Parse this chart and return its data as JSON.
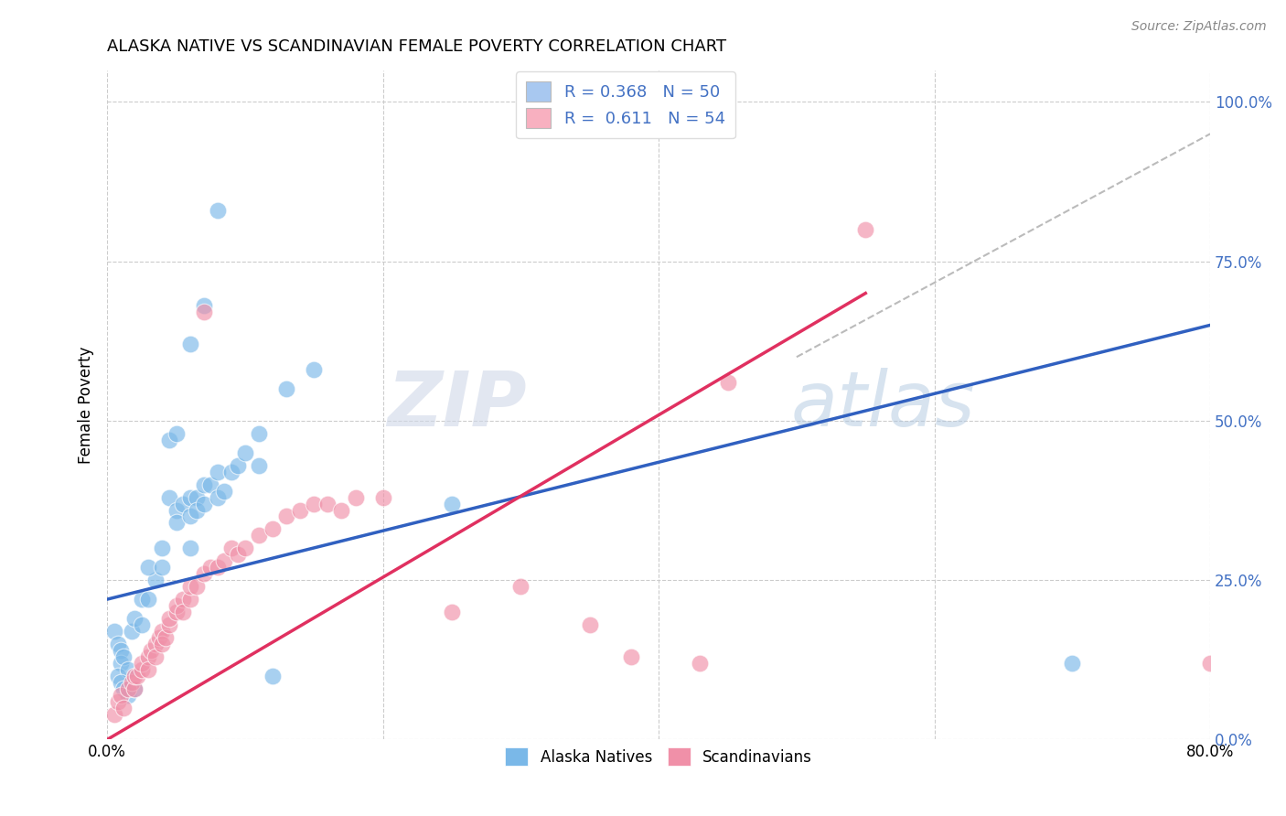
{
  "title": "ALASKA NATIVE VS SCANDINAVIAN FEMALE POVERTY CORRELATION CHART",
  "source": "Source: ZipAtlas.com",
  "ylabel": "Female Poverty",
  "ytick_labels": [
    "0.0%",
    "25.0%",
    "50.0%",
    "75.0%",
    "100.0%"
  ],
  "ytick_values": [
    0.0,
    0.25,
    0.5,
    0.75,
    1.0
  ],
  "xlim": [
    0.0,
    0.8
  ],
  "ylim": [
    0.0,
    1.05
  ],
  "legend_entries": [
    {
      "label": "R = 0.368   N = 50",
      "color": "#a8c8f0"
    },
    {
      "label": "R =  0.611   N = 54",
      "color": "#f8b0c0"
    }
  ],
  "alaska_color": "#7ab8e8",
  "scandinavian_color": "#f090a8",
  "alaska_line_color": "#3060c0",
  "scandinavian_line_color": "#e03060",
  "watermark": "ZIPatlas",
  "alaska_line_x": [
    0.0,
    0.8
  ],
  "alaska_line_y": [
    0.22,
    0.65
  ],
  "scandinavian_line_x": [
    0.0,
    0.55
  ],
  "scandinavian_line_y": [
    0.0,
    0.7
  ],
  "dashed_line_x": [
    0.5,
    0.8
  ],
  "dashed_line_y": [
    0.6,
    0.95
  ],
  "alaska_scatter": [
    [
      0.005,
      0.17
    ],
    [
      0.008,
      0.15
    ],
    [
      0.01,
      0.14
    ],
    [
      0.01,
      0.12
    ],
    [
      0.012,
      0.13
    ],
    [
      0.008,
      0.1
    ],
    [
      0.015,
      0.11
    ],
    [
      0.01,
      0.09
    ],
    [
      0.012,
      0.08
    ],
    [
      0.015,
      0.07
    ],
    [
      0.02,
      0.08
    ],
    [
      0.018,
      0.17
    ],
    [
      0.02,
      0.19
    ],
    [
      0.025,
      0.22
    ],
    [
      0.025,
      0.18
    ],
    [
      0.03,
      0.22
    ],
    [
      0.035,
      0.25
    ],
    [
      0.03,
      0.27
    ],
    [
      0.04,
      0.27
    ],
    [
      0.04,
      0.3
    ],
    [
      0.045,
      0.38
    ],
    [
      0.05,
      0.36
    ],
    [
      0.05,
      0.34
    ],
    [
      0.055,
      0.37
    ],
    [
      0.06,
      0.38
    ],
    [
      0.06,
      0.35
    ],
    [
      0.06,
      0.3
    ],
    [
      0.065,
      0.38
    ],
    [
      0.065,
      0.36
    ],
    [
      0.07,
      0.4
    ],
    [
      0.07,
      0.37
    ],
    [
      0.075,
      0.4
    ],
    [
      0.08,
      0.42
    ],
    [
      0.08,
      0.38
    ],
    [
      0.085,
      0.39
    ],
    [
      0.09,
      0.42
    ],
    [
      0.095,
      0.43
    ],
    [
      0.1,
      0.45
    ],
    [
      0.11,
      0.48
    ],
    [
      0.11,
      0.43
    ],
    [
      0.06,
      0.62
    ],
    [
      0.07,
      0.68
    ],
    [
      0.08,
      0.83
    ],
    [
      0.045,
      0.47
    ],
    [
      0.05,
      0.48
    ],
    [
      0.13,
      0.55
    ],
    [
      0.15,
      0.58
    ],
    [
      0.12,
      0.1
    ],
    [
      0.7,
      0.12
    ],
    [
      0.25,
      0.37
    ]
  ],
  "scandinavian_scatter": [
    [
      0.005,
      0.04
    ],
    [
      0.008,
      0.06
    ],
    [
      0.01,
      0.07
    ],
    [
      0.012,
      0.05
    ],
    [
      0.015,
      0.08
    ],
    [
      0.018,
      0.09
    ],
    [
      0.02,
      0.08
    ],
    [
      0.02,
      0.1
    ],
    [
      0.022,
      0.1
    ],
    [
      0.025,
      0.11
    ],
    [
      0.025,
      0.12
    ],
    [
      0.03,
      0.13
    ],
    [
      0.03,
      0.11
    ],
    [
      0.032,
      0.14
    ],
    [
      0.035,
      0.15
    ],
    [
      0.035,
      0.13
    ],
    [
      0.038,
      0.16
    ],
    [
      0.04,
      0.17
    ],
    [
      0.04,
      0.15
    ],
    [
      0.042,
      0.16
    ],
    [
      0.045,
      0.18
    ],
    [
      0.045,
      0.19
    ],
    [
      0.05,
      0.2
    ],
    [
      0.05,
      0.21
    ],
    [
      0.055,
      0.22
    ],
    [
      0.055,
      0.2
    ],
    [
      0.06,
      0.22
    ],
    [
      0.06,
      0.24
    ],
    [
      0.065,
      0.24
    ],
    [
      0.07,
      0.26
    ],
    [
      0.075,
      0.27
    ],
    [
      0.08,
      0.27
    ],
    [
      0.085,
      0.28
    ],
    [
      0.09,
      0.3
    ],
    [
      0.095,
      0.29
    ],
    [
      0.1,
      0.3
    ],
    [
      0.11,
      0.32
    ],
    [
      0.12,
      0.33
    ],
    [
      0.13,
      0.35
    ],
    [
      0.14,
      0.36
    ],
    [
      0.15,
      0.37
    ],
    [
      0.16,
      0.37
    ],
    [
      0.17,
      0.36
    ],
    [
      0.18,
      0.38
    ],
    [
      0.2,
      0.38
    ],
    [
      0.25,
      0.2
    ],
    [
      0.3,
      0.24
    ],
    [
      0.35,
      0.18
    ],
    [
      0.38,
      0.13
    ],
    [
      0.43,
      0.12
    ],
    [
      0.07,
      0.67
    ],
    [
      0.45,
      0.56
    ],
    [
      0.55,
      0.8
    ],
    [
      0.8,
      0.12
    ]
  ]
}
